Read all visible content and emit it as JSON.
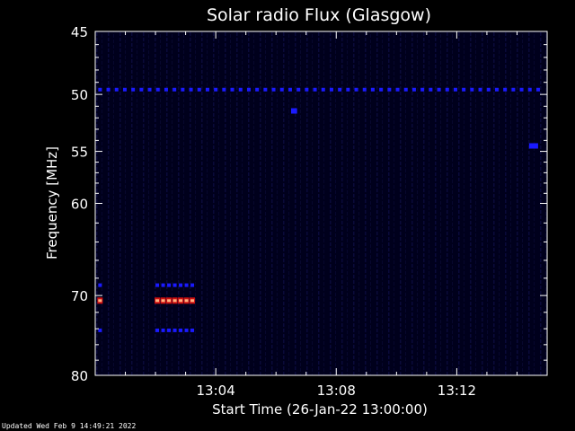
{
  "chart_data": {
    "type": "heatmap",
    "title": "Solar radio Flux (Glasgow)",
    "xlabel": "Start Time (26-Jan-22 13:00:00)",
    "ylabel": "Frequency [MHz]",
    "x_ticks": [
      "13:04",
      "13:08",
      "13:12"
    ],
    "x_tick_minutes": [
      4,
      8,
      12
    ],
    "xlim_minutes": [
      0,
      15
    ],
    "y_ticks": [
      45,
      50,
      55,
      60,
      70,
      80
    ],
    "ylim": [
      45,
      80
    ],
    "y_scale": "log",
    "grid": false,
    "colors": {
      "background": "#000000",
      "field": "#00001c",
      "weak": "#1a1aff",
      "medium": "#d01010",
      "strong": "#ffb080"
    },
    "features": [
      {
        "label": "persistent line",
        "frequency_mhz": 49.6,
        "minute_start": 0.1,
        "minute_end": 14.8,
        "intensity": "weak"
      },
      {
        "label": "spot",
        "frequency_mhz": 51.4,
        "minute_start": 6.5,
        "minute_end": 6.7,
        "intensity": "weak"
      },
      {
        "label": "spot",
        "frequency_mhz": 54.5,
        "minute_start": 14.4,
        "minute_end": 14.7,
        "intensity": "weak"
      },
      {
        "label": "burst",
        "frequency_mhz": 68.8,
        "minute_start": 0.1,
        "minute_end": 0.3,
        "intensity": "weak"
      },
      {
        "label": "burst",
        "frequency_mhz": 70.6,
        "minute_start": 0.1,
        "minute_end": 0.3,
        "intensity": "strong"
      },
      {
        "label": "burst",
        "frequency_mhz": 74.2,
        "minute_start": 0.1,
        "minute_end": 0.3,
        "intensity": "weak"
      },
      {
        "label": "burst",
        "frequency_mhz": 68.8,
        "minute_start": 2.0,
        "minute_end": 3.4,
        "intensity": "weak"
      },
      {
        "label": "burst",
        "frequency_mhz": 70.6,
        "minute_start": 2.0,
        "minute_end": 3.4,
        "intensity": "strong"
      },
      {
        "label": "burst",
        "frequency_mhz": 74.2,
        "minute_start": 2.0,
        "minute_end": 3.4,
        "intensity": "weak"
      }
    ]
  },
  "footer": {
    "updated": "Updated Wed Feb  9 14:49:21 2022"
  }
}
